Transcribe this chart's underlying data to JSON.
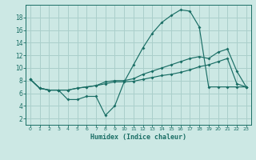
{
  "xlabel": "Humidex (Indice chaleur)",
  "ylabel": "",
  "background_color": "#cce8e4",
  "grid_color": "#aacfcb",
  "line_color": "#1a6e65",
  "xlim": [
    -0.5,
    23.5
  ],
  "ylim": [
    1,
    20
  ],
  "xticks": [
    0,
    1,
    2,
    3,
    4,
    5,
    6,
    7,
    8,
    9,
    10,
    11,
    12,
    13,
    14,
    15,
    16,
    17,
    18,
    19,
    20,
    21,
    22,
    23
  ],
  "yticks": [
    2,
    4,
    6,
    8,
    10,
    12,
    14,
    16,
    18
  ],
  "line1_x": [
    0,
    1,
    2,
    3,
    4,
    5,
    6,
    7,
    8,
    9,
    10,
    11,
    12,
    13,
    14,
    15,
    16,
    17,
    18,
    19,
    20,
    21,
    22,
    23
  ],
  "line1_y": [
    8.2,
    6.8,
    6.5,
    6.5,
    5.0,
    5.0,
    5.5,
    5.5,
    2.5,
    4.0,
    7.8,
    10.5,
    13.2,
    15.5,
    17.2,
    18.3,
    19.2,
    19.0,
    16.5,
    7.0,
    7.0,
    7.0,
    7.0,
    7.0
  ],
  "line2_x": [
    0,
    1,
    2,
    3,
    4,
    5,
    6,
    7,
    8,
    9,
    10,
    11,
    12,
    13,
    14,
    15,
    16,
    17,
    18,
    19,
    20,
    21,
    22,
    23
  ],
  "line2_y": [
    8.2,
    6.8,
    6.5,
    6.5,
    6.5,
    6.8,
    7.0,
    7.2,
    7.8,
    8.0,
    8.0,
    8.3,
    9.0,
    9.5,
    10.0,
    10.5,
    11.0,
    11.5,
    11.8,
    11.5,
    12.5,
    13.0,
    9.5,
    7.0
  ],
  "line3_x": [
    0,
    1,
    2,
    3,
    4,
    5,
    6,
    7,
    8,
    9,
    10,
    11,
    12,
    13,
    14,
    15,
    16,
    17,
    18,
    19,
    20,
    21,
    22,
    23
  ],
  "line3_y": [
    8.2,
    6.8,
    6.5,
    6.5,
    6.5,
    6.8,
    7.0,
    7.2,
    7.5,
    7.8,
    7.8,
    7.9,
    8.2,
    8.5,
    8.8,
    9.0,
    9.3,
    9.7,
    10.2,
    10.5,
    11.0,
    11.5,
    7.5,
    7.0
  ]
}
